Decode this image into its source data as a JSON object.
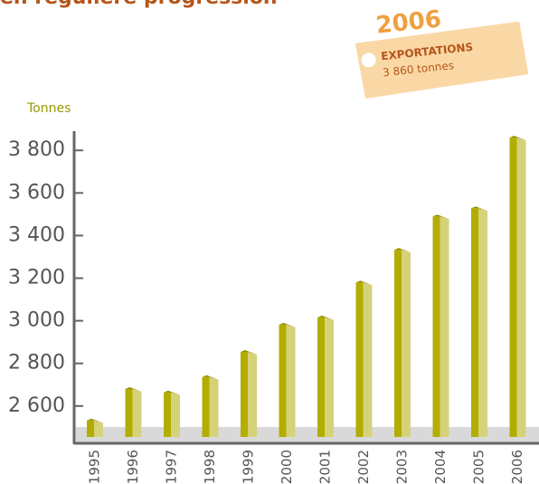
{
  "chart_data": {
    "type": "bar",
    "title": "en régulière progression",
    "y_axis_label": "Tonnes",
    "annotation": {
      "year": "2006",
      "heading": "EXPORTATIONS",
      "text": "3 860 tonnes"
    },
    "categories": [
      "1995",
      "1996",
      "1997",
      "1998",
      "1999",
      "2000",
      "2001",
      "2002",
      "2003",
      "2004",
      "2005",
      "2006"
    ],
    "values": [
      2532,
      2680,
      2664,
      2736,
      2854,
      2982,
      3016,
      3180,
      3333,
      3490,
      3528,
      3860
    ],
    "color": "#b3ad00",
    "ylim": [
      2425,
      3890
    ],
    "yticks": [
      {
        "value": 2600,
        "label": "2 600"
      },
      {
        "value": 2800,
        "label": "2 800"
      },
      {
        "value": 3000,
        "label": "3 000"
      },
      {
        "value": 3200,
        "label": "3 200"
      },
      {
        "value": 3400,
        "label": "3 400"
      },
      {
        "value": 3600,
        "label": "3 600"
      },
      {
        "value": 3800,
        "label": "3 800"
      }
    ]
  }
}
